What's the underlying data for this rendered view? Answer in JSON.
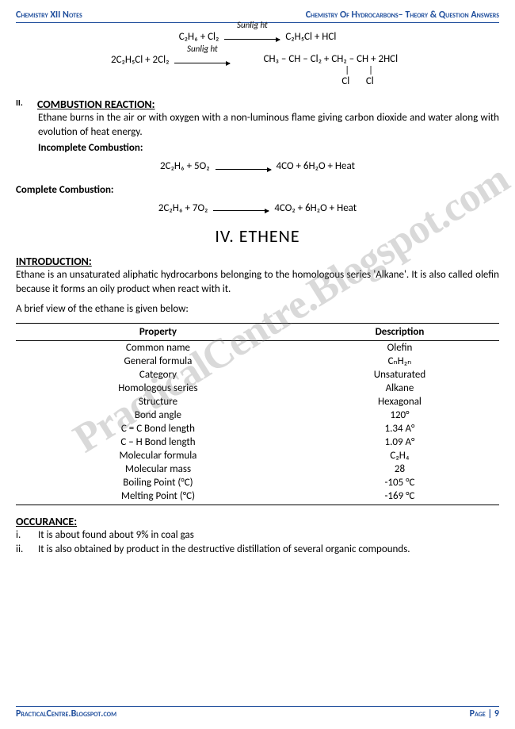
{
  "header": {
    "left": "Chemistry XII Notes",
    "right": "Chemistry Of Hydrocarbons– Theory & Question Answers"
  },
  "footer": {
    "left": "PracticalCentre.Blogspot.com",
    "right": "Page | 9"
  },
  "watermark": "PracticalCentre.Blogspot.com",
  "eq1": {
    "lhs": "C₂H₆ + Cl₂",
    "arrow": "Sunlig ht",
    "rhs": "C₂H₅Cl + HCl"
  },
  "eq2": {
    "lhs": "2C₂H₅Cl + 2Cl₂",
    "arrow": "Sunlig ht",
    "rhs_line1": "CH₃ – CH – Cl₂ + CH₂ – CH  +  2HCl",
    "rhs_bonds": "|     |",
    "rhs_atoms": "Cl      Cl"
  },
  "sec2": {
    "num": "II.",
    "title": "COMBUSTION REACTION:",
    "text": "Ethane burns in the air or with oxygen with a non-luminous flame giving carbon dioxide and water along with evolution of heat energy.",
    "incomplete_label": "Incomplete Combustion:",
    "incomplete_eq_lhs": "2C₂H₆ + 5O₂",
    "incomplete_eq_rhs": "4CO + 6H₂O + Heat",
    "complete_label": "Complete Combustion:",
    "complete_eq_lhs": "2C₂H₆ + 7O₂",
    "complete_eq_rhs": "4CO₂ + 6H₂O + Heat"
  },
  "main_heading": "IV.  ETHENE",
  "intro": {
    "title": "INTRODUCTION:",
    "text": "Ethane is an unsaturated aliphatic hydrocarbons belonging to the homologous series 'Alkane'. It is also called olefin because it forms an oily product when react with it.",
    "brief": "A brief view of the ethane is given below:"
  },
  "table": {
    "headers": [
      "Property",
      "Description"
    ],
    "rows": [
      [
        "Common name",
        "Olefin"
      ],
      [
        "General formula",
        "CₙH₂ₙ"
      ],
      [
        "Category",
        "Unsaturated"
      ],
      [
        "Homologous series",
        "Alkane"
      ],
      [
        "Structure",
        "Hexagonal"
      ],
      [
        "Bond angle",
        "120°"
      ],
      [
        "C = C Bond length",
        "1.34 A°"
      ],
      [
        "C – H Bond length",
        "1.09 A°"
      ],
      [
        "Molecular formula",
        "C₂H₄"
      ],
      [
        "Molecular mass",
        "28"
      ],
      [
        "Boiling Point (°C)",
        "-105 °C"
      ],
      [
        "Melting Point (°C)",
        "-169 °C"
      ]
    ]
  },
  "occurance": {
    "title": "OCCURANCE:",
    "items": [
      {
        "num": "i.",
        "text": "It is about found about 9% in coal gas"
      },
      {
        "num": "ii.",
        "text": "It is also obtained by product in the destructive distillation of several organic compounds."
      }
    ]
  }
}
